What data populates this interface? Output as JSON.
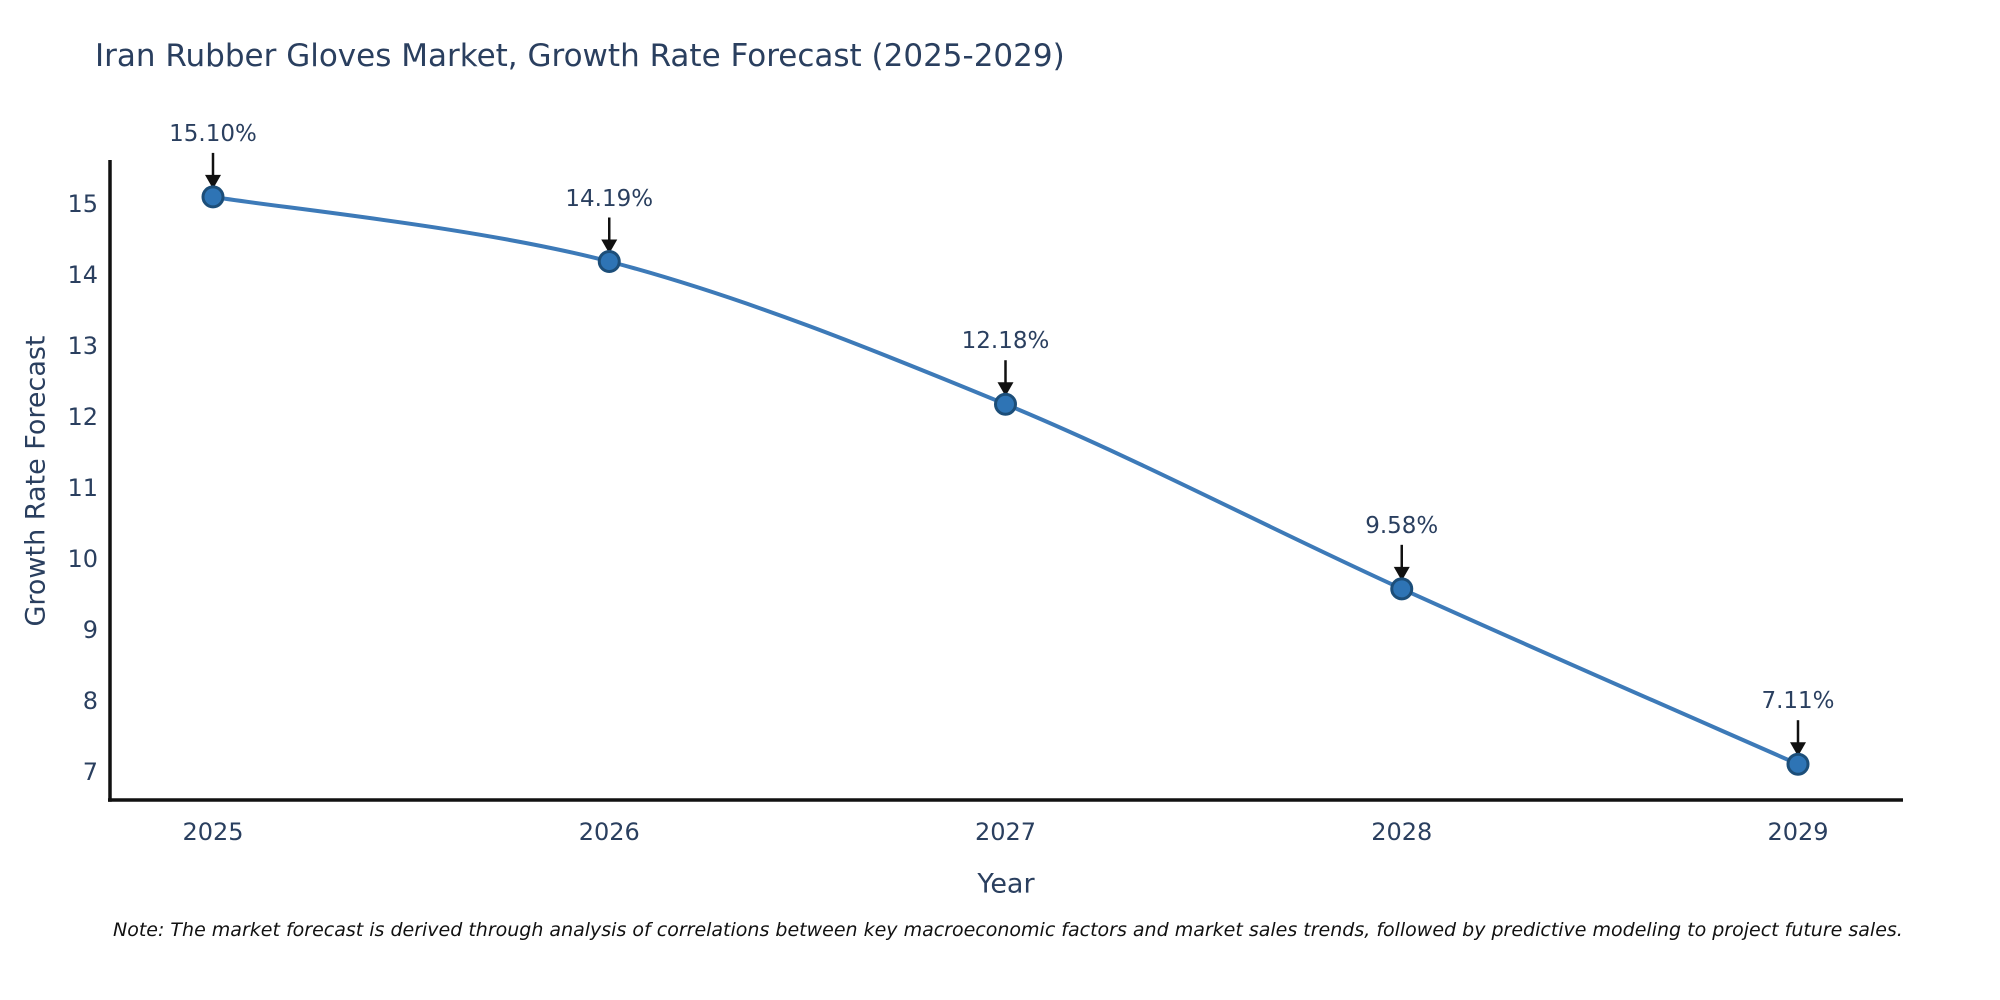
{
  "note": "Note: The market forecast is derived through analysis of correlations between key macroeconomic factors and market sales trends, followed by predictive modeling to project future sales.",
  "chart_data": {
    "type": "line",
    "title": "Iran Rubber Gloves Market, Growth Rate Forecast (2025-2029)",
    "xlabel": "Year",
    "ylabel": "Growth Rate Forecast",
    "categories": [
      "2025",
      "2026",
      "2027",
      "2028",
      "2029"
    ],
    "values": [
      15.1,
      14.19,
      12.18,
      9.58,
      7.11
    ],
    "point_labels": [
      "15.10%",
      "14.19%",
      "12.18%",
      "9.58%",
      "7.11%"
    ],
    "yticks": [
      15,
      14,
      13,
      12,
      11,
      10,
      9,
      8,
      7
    ],
    "ylim": [
      6.6,
      15.6
    ],
    "grid": false,
    "legend": "none",
    "line_shape": "spline",
    "annotation_style": "label-with-down-arrow",
    "colors": {
      "line": "#3d7ab8",
      "marker_fill": "#2e74b5",
      "marker_edge": "#1c4e79",
      "axis": "#111111",
      "arrow": "#111111",
      "text": "#2a3f5f",
      "note_text": "#111111",
      "background": "#ffffff"
    }
  }
}
